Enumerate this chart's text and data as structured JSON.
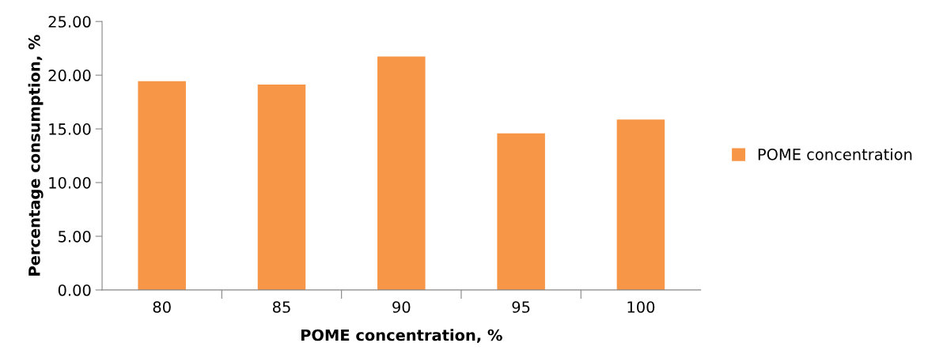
{
  "chart_data": {
    "type": "bar",
    "xlabel": "POME concentration, %",
    "ylabel": "Percentage consumption, %",
    "categories": [
      "80",
      "85",
      "90",
      "95",
      "100"
    ],
    "series": [
      {
        "name": "POME concentration",
        "color": "#f79646",
        "values": [
          19.44,
          19.13,
          21.73,
          14.58,
          15.87
        ]
      }
    ],
    "ylim": [
      0,
      25
    ],
    "yticks": [
      {
        "value": 0,
        "label": "0.00"
      },
      {
        "value": 5,
        "label": "5.00"
      },
      {
        "value": 10,
        "label": "10.00"
      },
      {
        "value": 15,
        "label": "15.00"
      },
      {
        "value": 20,
        "label": "20.00"
      },
      {
        "value": 25,
        "label": "25.00"
      }
    ],
    "grid": false,
    "legend": "right"
  }
}
